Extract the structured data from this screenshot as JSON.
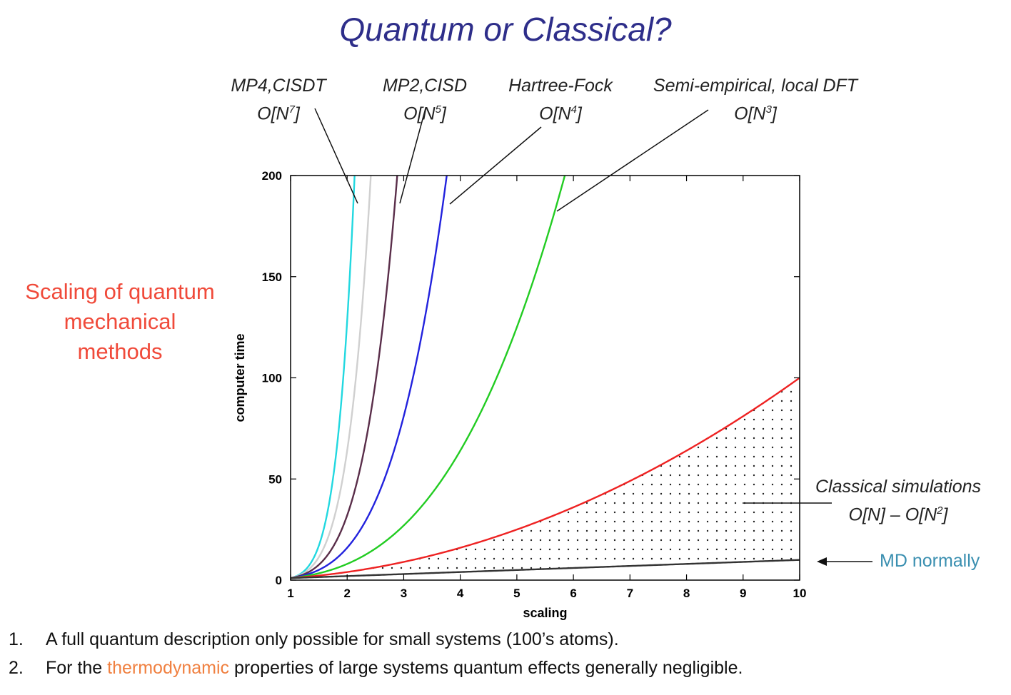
{
  "title": "Quantum or Classical?",
  "side_label": [
    "Scaling of quantum",
    "mechanical",
    "methods"
  ],
  "methods": [
    {
      "name": "MP4,CISDT",
      "order": "O[N",
      "exp": "7",
      "close": "]"
    },
    {
      "name": "MP2,CISD",
      "order": "O[N",
      "exp": "5",
      "close": "]"
    },
    {
      "name": "Hartree-Fock",
      "order": "O[N",
      "exp": "4",
      "close": "]"
    },
    {
      "name": "Semi-empirical, local DFT",
      "order": "O[N",
      "exp": "3",
      "close": "]"
    }
  ],
  "classical": {
    "line1": "Classical simulations",
    "line2a": "O[N] – O[N",
    "exp": "2",
    "line2b": "]"
  },
  "md_label": "MD normally",
  "notes": [
    {
      "num": "1.",
      "text": "A full quantum description only possible for small systems (100’s atoms)."
    },
    {
      "num": "2.",
      "pre": "For the ",
      "highlight": "thermodynamic",
      "post": " properties of large systems quantum effects generally negligible."
    }
  ],
  "chart_data": {
    "type": "line",
    "xlabel": "scaling",
    "ylabel": "computer time",
    "xlim": [
      1,
      10
    ],
    "ylim": [
      0,
      200
    ],
    "xticks": [
      "1",
      "2",
      "3",
      "4",
      "5",
      "6",
      "7",
      "8",
      "9",
      "10"
    ],
    "yticks": [
      "0",
      "50",
      "100",
      "150",
      "200"
    ],
    "series": [
      {
        "exponent": 7,
        "color": "#22d8e0"
      },
      {
        "exponent": 6,
        "color": "#d0d0d0"
      },
      {
        "exponent": 5,
        "color": "#5a2e4a"
      },
      {
        "exponent": 4,
        "color": "#2222dd"
      },
      {
        "exponent": 3,
        "color": "#22cc22"
      },
      {
        "exponent": 2,
        "color": "#ee2222"
      },
      {
        "exponent": 1,
        "color": "#333333"
      }
    ],
    "shaded_region": {
      "between_exponents": [
        1,
        2
      ],
      "pattern": "dots"
    }
  }
}
